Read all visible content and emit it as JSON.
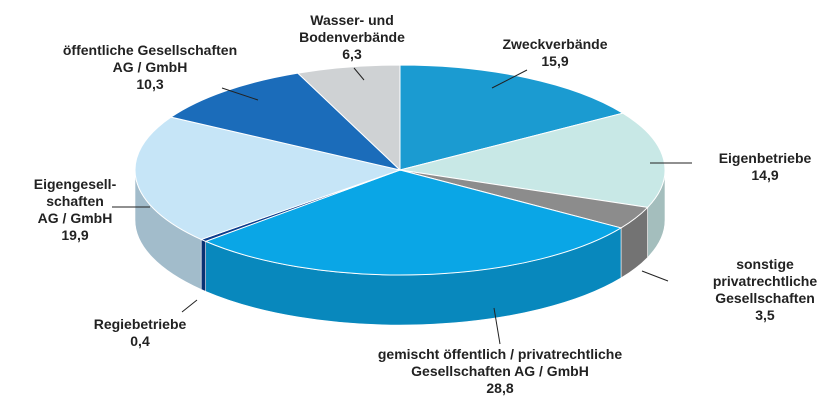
{
  "chart_data": {
    "type": "pie",
    "categories": [
      "Zweckverbände",
      "Eigenbetriebe",
      "sonstige\nprivatrechtliche\nGesellschaften",
      "gemischt öffentlich / privatrechtliche\nGesellschaften AG / GmbH",
      "Regiebetriebe",
      "Eigengesell-\nschaften\nAG / GmbH",
      "öffentliche Gesellschaften\nAG / GmbH",
      "Wasser- und\nBodenverbände"
    ],
    "values": [
      15.9,
      14.9,
      3.5,
      28.8,
      0.4,
      19.9,
      10.3,
      6.3
    ],
    "value_labels": [
      "15,9",
      "14,9",
      "3,5",
      "28,8",
      "0,4",
      "19,9",
      "10,3",
      "6,3"
    ],
    "colors": [
      "#1b9bd1",
      "#c8e8e6",
      "#8c8c8c",
      "#0aa6e6",
      "#0b3c8c",
      "#c6e5f7",
      "#1b6cba",
      "#cfd2d4"
    ]
  }
}
